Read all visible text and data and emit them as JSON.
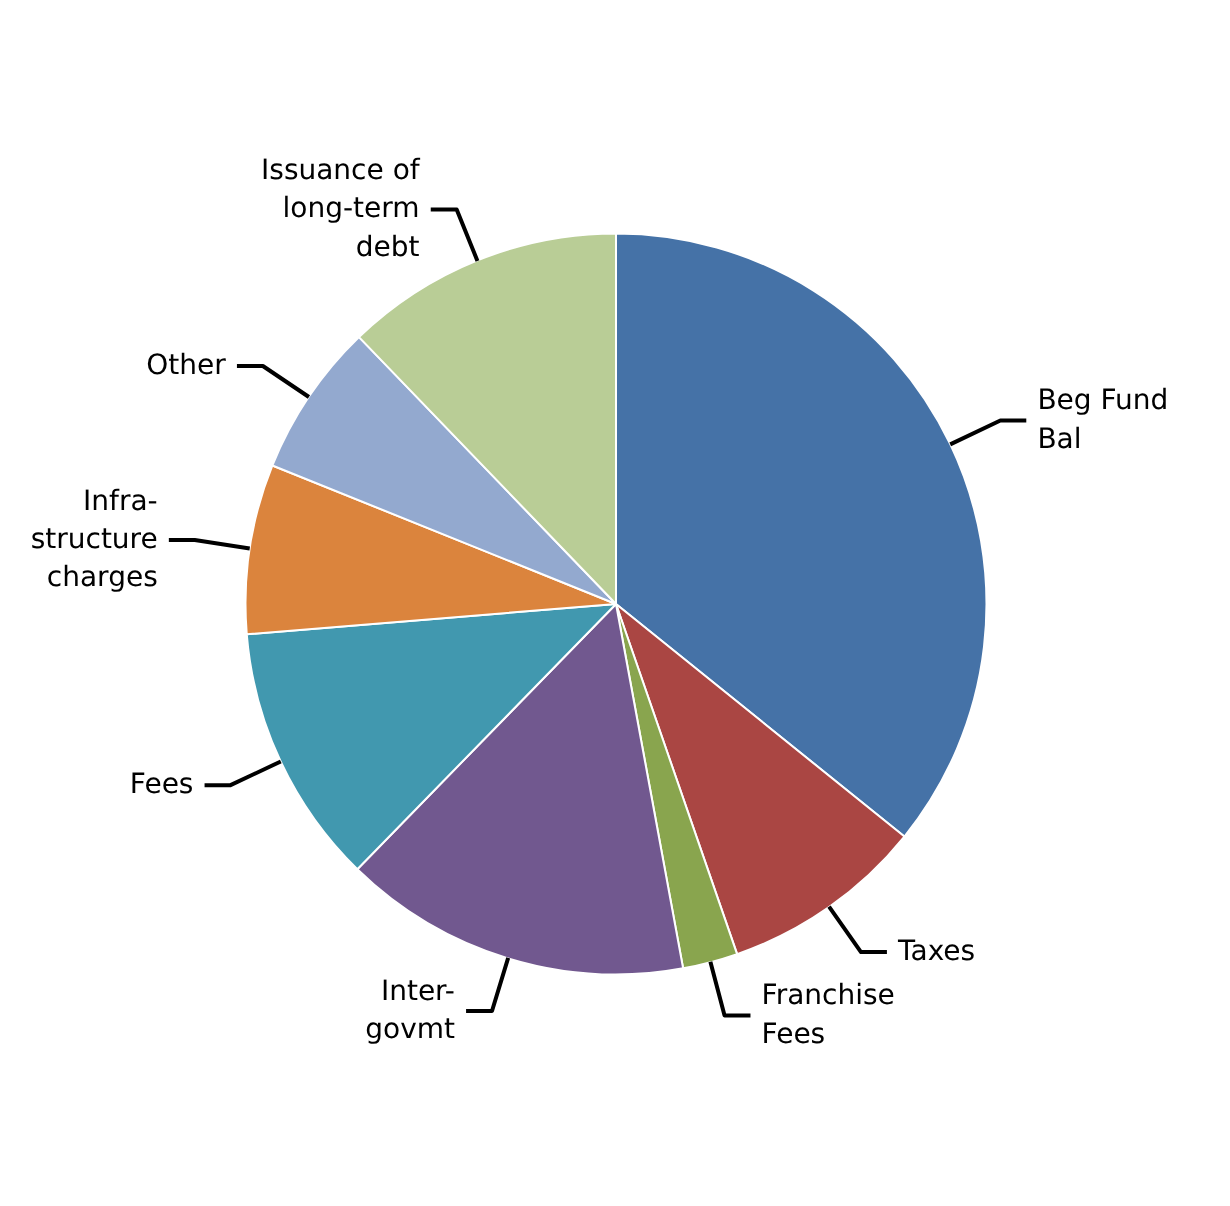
{
  "chart_data": {
    "type": "pie",
    "categories": [
      "Beg Fund\nBal",
      "Taxes",
      "Franchise\nFees",
      "Inter-\ngovmt",
      "Fees",
      "Infra-\nstructure\ncharges",
      "Other",
      "Issuance of\nlong-term\ndebt"
    ],
    "values": [
      35.8,
      8.9,
      2.4,
      15.2,
      11.4,
      7.4,
      6.7,
      12.2
    ],
    "colors": [
      "#4572a7",
      "#aa4643",
      "#89a54e",
      "#71588f",
      "#4198af",
      "#db843d",
      "#93a9cf",
      "#b9cd96"
    ]
  }
}
